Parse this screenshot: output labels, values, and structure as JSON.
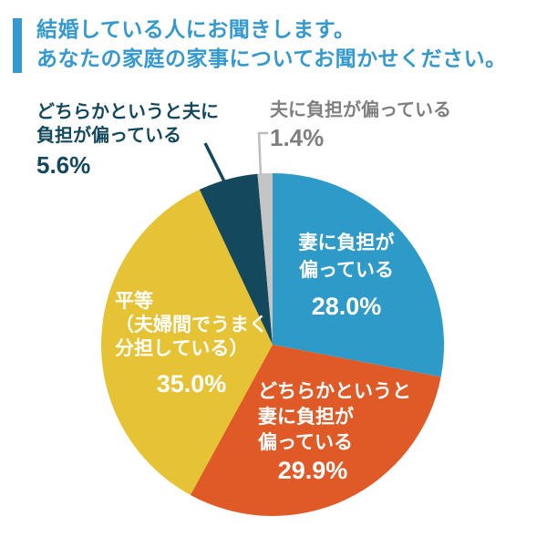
{
  "header": {
    "accent_color": "#3499CE",
    "title_line1": "結婚している人にお聞きします。",
    "title_line2": "あなたの家庭の家事についてお聞かせください。"
  },
  "chart_data": {
    "type": "pie",
    "title": "あなたの家庭の家事について（結婚している人）",
    "direction": "clockwise",
    "start_angle_deg": 0,
    "legend_position": "none",
    "slices": [
      {
        "label": "妻に負担が偏っている",
        "label_lines": [
          "妻に負担が",
          "偏っている"
        ],
        "value": 28.0,
        "display": "28.0%",
        "color": "#2E9AC7",
        "label_placement": "inside"
      },
      {
        "label": "どちらかというと妻に負担が偏っている",
        "label_lines": [
          "どちらかというと",
          "妻に負担が",
          "偏っている"
        ],
        "value": 29.9,
        "display": "29.9%",
        "color": "#E05A28",
        "label_placement": "inside"
      },
      {
        "label": "平等（夫婦間でうまく分担している）",
        "label_lines": [
          "平等",
          "（夫婦間でうまく",
          "分担している）"
        ],
        "value": 35.0,
        "display": "35.0%",
        "color": "#E6C235",
        "label_placement": "inside"
      },
      {
        "label": "どちらかというと夫に負担が偏っている",
        "label_lines": [
          "どちらかというと夫に",
          "負担が偏っている"
        ],
        "value": 5.6,
        "display": "5.6%",
        "color": "#14485C",
        "label_placement": "outside"
      },
      {
        "label": "夫に負担が偏っている",
        "label_lines": [
          "夫に負担が偏っている"
        ],
        "value": 1.4,
        "display": "1.4%",
        "color": "#C4C4C4",
        "label_text_color": "#7F7F7F",
        "label_placement": "outside"
      }
    ]
  }
}
